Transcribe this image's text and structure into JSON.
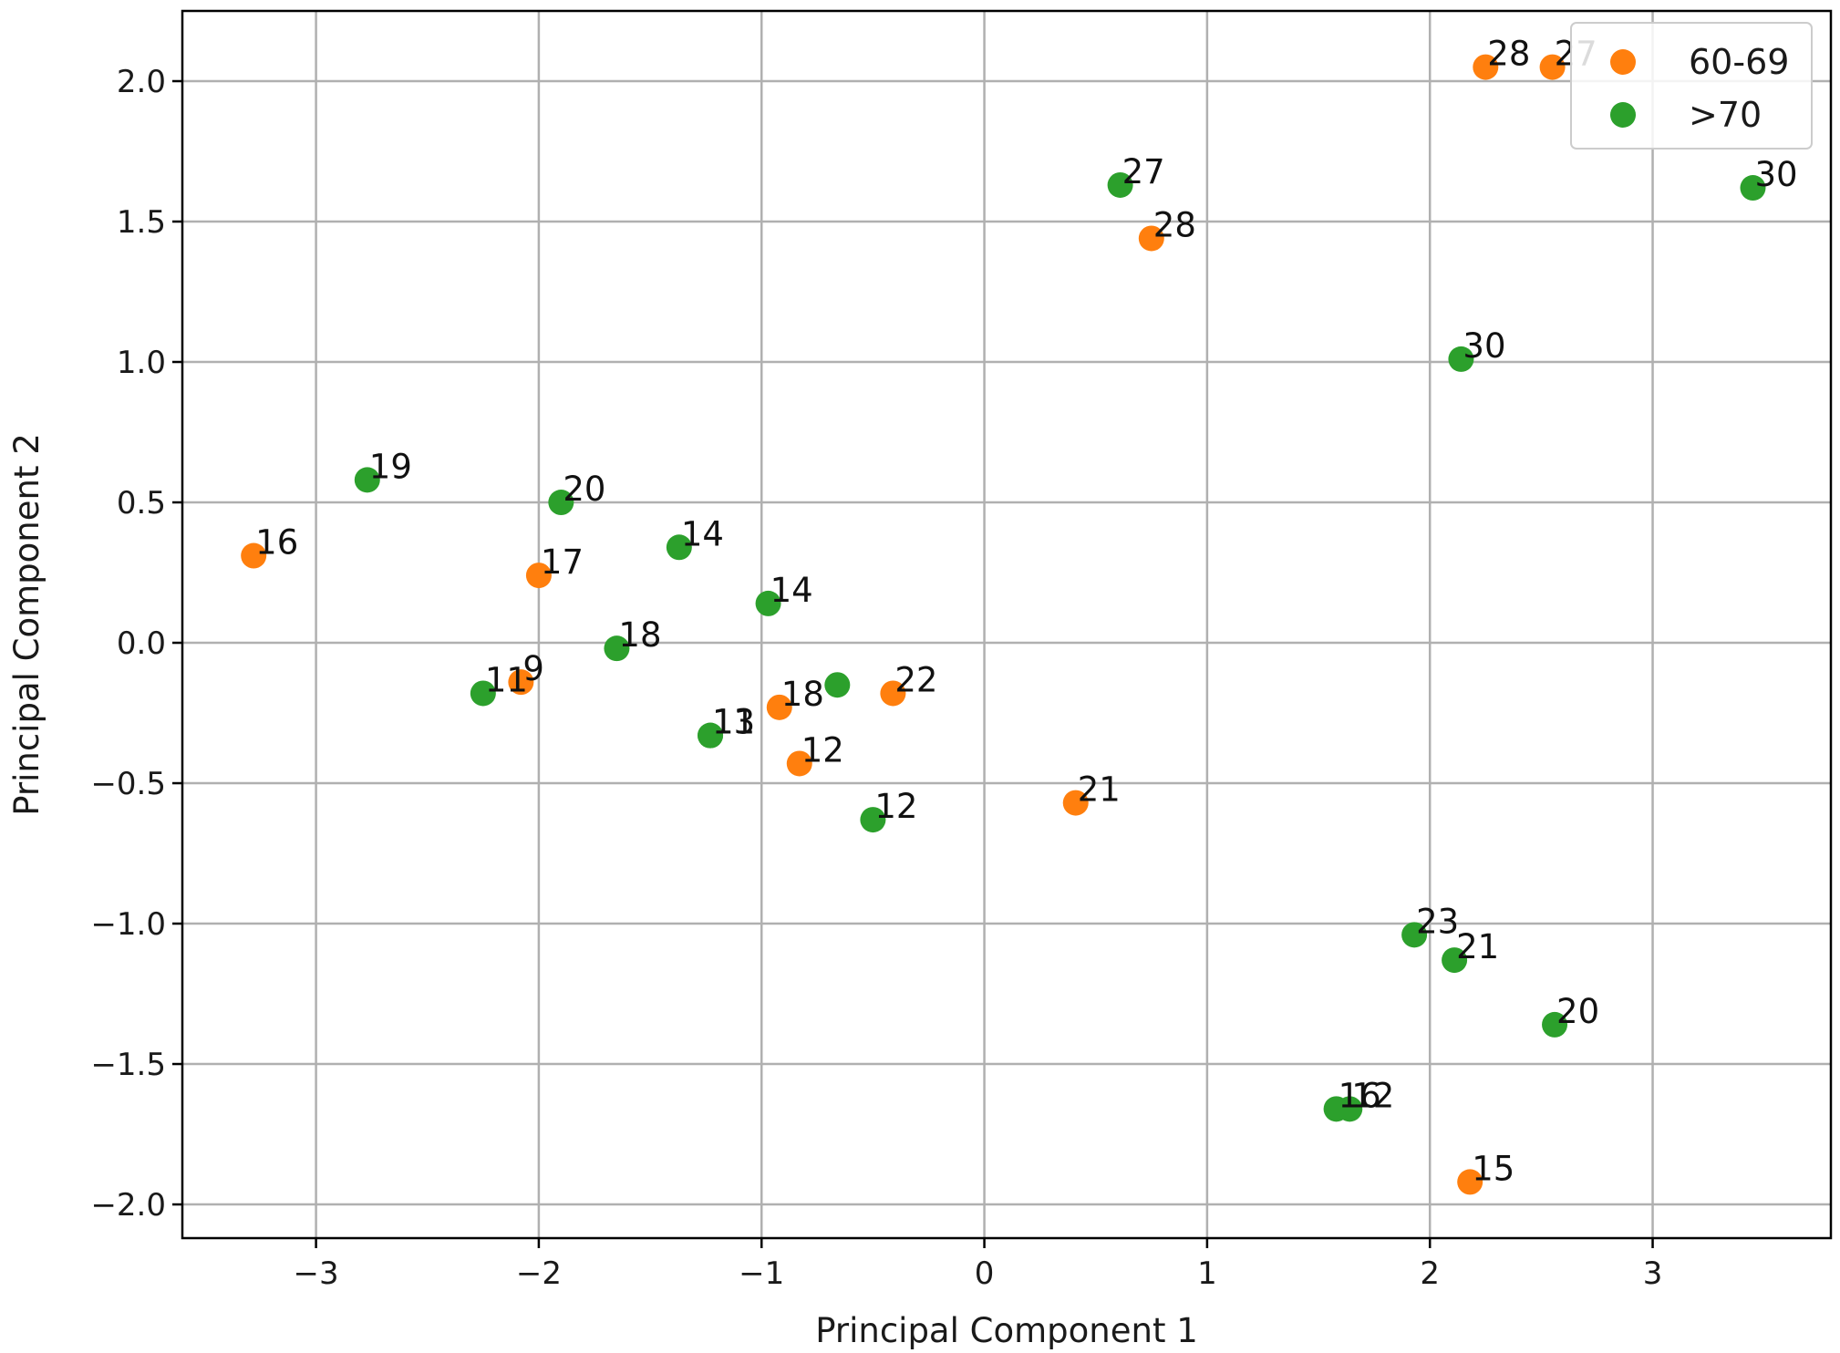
{
  "chart_data": {
    "type": "scatter",
    "xlabel": "Principal Component 1",
    "ylabel": "Principal Component 2",
    "xlim": [
      -3.6,
      3.8
    ],
    "ylim": [
      -2.12,
      2.25
    ],
    "xticks": [
      -3,
      -2,
      -1,
      0,
      1,
      2,
      3
    ],
    "xtick_labels": [
      "−3",
      "−2",
      "−1",
      "0",
      "1",
      "2",
      "3"
    ],
    "yticks": [
      -2.0,
      -1.5,
      -1.0,
      -0.5,
      0.0,
      0.5,
      1.0,
      1.5,
      2.0
    ],
    "ytick_labels": [
      "−2.0",
      "−1.5",
      "−1.0",
      "−0.5",
      "0.0",
      "0.5",
      "1.0",
      "1.5",
      "2.0"
    ],
    "grid": true,
    "legend_position": "top-right",
    "series": [
      {
        "name": "60-69",
        "color": "#ff7f0e",
        "points": [
          {
            "x": 2.25,
            "y": 2.05,
            "label": "28"
          },
          {
            "x": 2.55,
            "y": 2.05,
            "label": "27"
          },
          {
            "x": 0.75,
            "y": 1.44,
            "label": "28"
          },
          {
            "x": -3.28,
            "y": 0.31,
            "label": "16"
          },
          {
            "x": -2.0,
            "y": 0.24,
            "label": "17"
          },
          {
            "x": -2.08,
            "y": -0.14,
            "label": "9"
          },
          {
            "x": -0.92,
            "y": -0.23,
            "label": "18"
          },
          {
            "x": -0.41,
            "y": -0.18,
            "label": "22"
          },
          {
            "x": -0.83,
            "y": -0.43,
            "label": "12"
          },
          {
            "x": 0.41,
            "y": -0.57,
            "label": "21"
          },
          {
            "x": 2.18,
            "y": -1.92,
            "label": "15"
          }
        ]
      },
      {
        "name": ">70",
        "color": "#2ca02c",
        "points": [
          {
            "x": 0.61,
            "y": 1.63,
            "label": "27"
          },
          {
            "x": 3.45,
            "y": 1.62,
            "label": "30"
          },
          {
            "x": 2.14,
            "y": 1.01,
            "label": "30"
          },
          {
            "x": -2.77,
            "y": 0.58,
            "label": "19"
          },
          {
            "x": -1.9,
            "y": 0.5,
            "label": "20"
          },
          {
            "x": -1.37,
            "y": 0.34,
            "label": "14"
          },
          {
            "x": -0.97,
            "y": 0.14,
            "label": "14"
          },
          {
            "x": -1.65,
            "y": -0.02,
            "label": "18"
          },
          {
            "x": -2.25,
            "y": -0.18,
            "label": "11"
          },
          {
            "x": -0.66,
            "y": -0.15,
            "label": ""
          },
          {
            "x": -1.23,
            "y": -0.33,
            "label": "11"
          },
          {
            "x": -1.23,
            "y": -0.33,
            "label": "13"
          },
          {
            "x": -0.5,
            "y": -0.63,
            "label": "12"
          },
          {
            "x": 1.93,
            "y": -1.04,
            "label": "23"
          },
          {
            "x": 2.11,
            "y": -1.13,
            "label": "21"
          },
          {
            "x": 2.56,
            "y": -1.36,
            "label": "20"
          },
          {
            "x": 1.58,
            "y": -1.66,
            "label": "16"
          },
          {
            "x": 1.64,
            "y": -1.66,
            "label": "12"
          }
        ]
      }
    ]
  }
}
